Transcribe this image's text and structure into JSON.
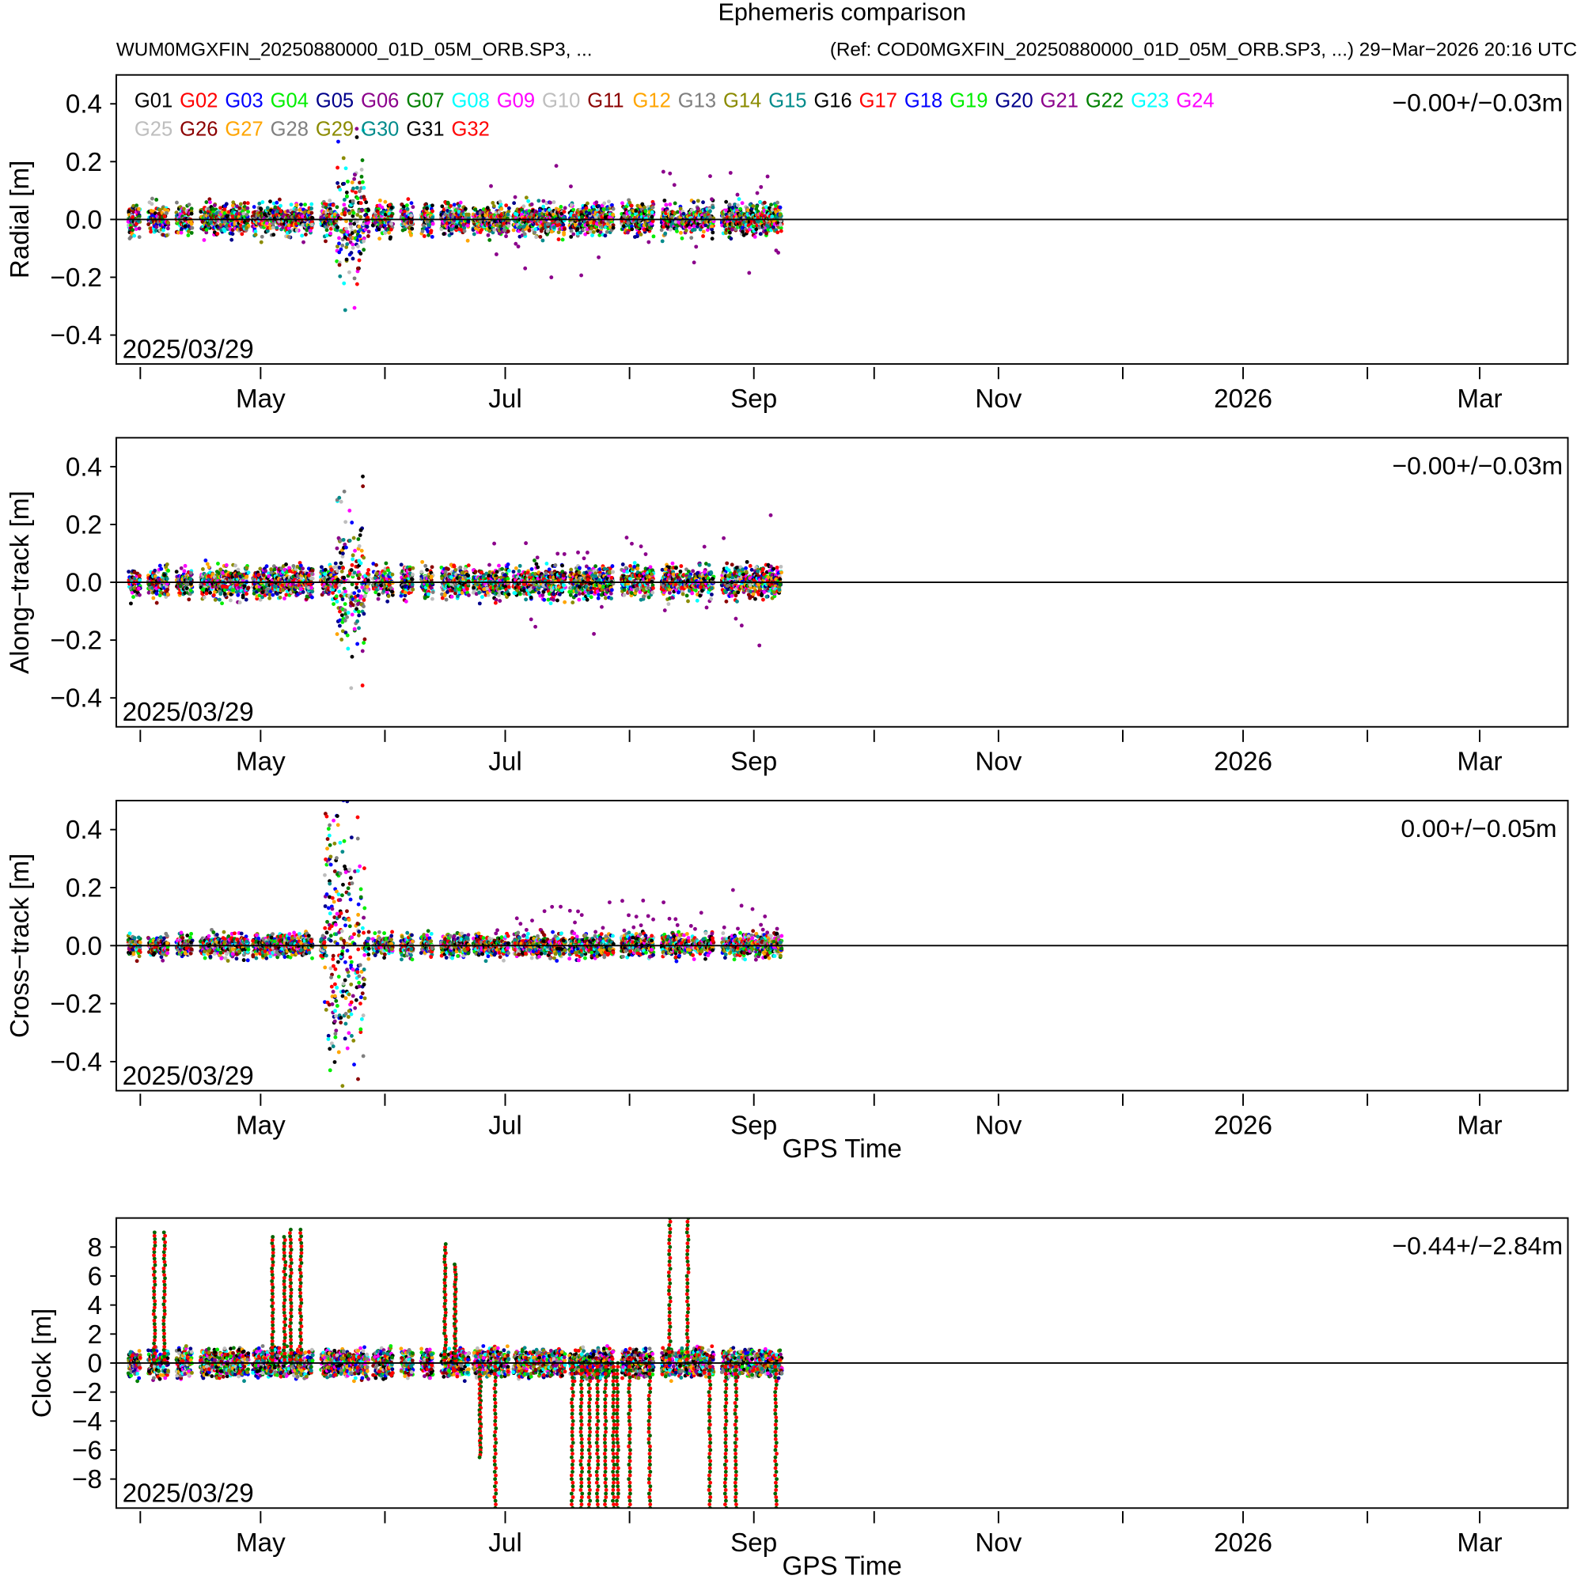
{
  "header": {
    "title": "Ephemeris comparison",
    "left_subtitle": "WUM0MGXFIN_20250880000_01D_05M_ORB.SP3, ...",
    "right_subtitle": "(Ref: COD0MGXFIN_20250880000_01D_05M_ORB.SP3, ...) 29−Mar−2026 20:16 UTC"
  },
  "chart_data": {
    "type": "scatter",
    "x_axis": {
      "label": "GPS Time",
      "start_date_label": "2025/03/29",
      "xlim_days_from_2025_03_29": [
        -3,
        359
      ],
      "major_ticks": [
        {
          "label": "May",
          "day": 33
        },
        {
          "label": "Jul",
          "day": 94
        },
        {
          "label": "Sep",
          "day": 156
        },
        {
          "label": "Nov",
          "day": 217
        },
        {
          "label": "2026",
          "day": 278
        },
        {
          "label": "Mar",
          "day": 337
        }
      ],
      "minor_ticks_days": [
        3,
        64,
        125,
        186,
        248,
        309
      ]
    },
    "legend": [
      {
        "name": "G01",
        "color": "#000000"
      },
      {
        "name": "G02",
        "color": "#ff0000"
      },
      {
        "name": "G03",
        "color": "#0000ff"
      },
      {
        "name": "G04",
        "color": "#00ee00"
      },
      {
        "name": "G05",
        "color": "#00008b"
      },
      {
        "name": "G06",
        "color": "#8b008b"
      },
      {
        "name": "G07",
        "color": "#008000"
      },
      {
        "name": "G08",
        "color": "#00ffff"
      },
      {
        "name": "G09",
        "color": "#ff00ff"
      },
      {
        "name": "G10",
        "color": "#bebebe"
      },
      {
        "name": "G11",
        "color": "#8b0000"
      },
      {
        "name": "G12",
        "color": "#ffa500"
      },
      {
        "name": "G13",
        "color": "#7f7f7f"
      },
      {
        "name": "G14",
        "color": "#8b8b00"
      },
      {
        "name": "G15",
        "color": "#008b8b"
      },
      {
        "name": "G16",
        "color": "#000000"
      },
      {
        "name": "G17",
        "color": "#ff0000"
      },
      {
        "name": "G18",
        "color": "#0000ff"
      },
      {
        "name": "G19",
        "color": "#00ee00"
      },
      {
        "name": "G20",
        "color": "#00008b"
      },
      {
        "name": "G21",
        "color": "#8b008b"
      },
      {
        "name": "G22",
        "color": "#008000"
      },
      {
        "name": "G23",
        "color": "#00ffff"
      },
      {
        "name": "G24",
        "color": "#ff00ff"
      },
      {
        "name": "G25",
        "color": "#bebebe"
      },
      {
        "name": "G26",
        "color": "#8b0000"
      },
      {
        "name": "G27",
        "color": "#ffa500"
      },
      {
        "name": "G28",
        "color": "#7f7f7f"
      },
      {
        "name": "G29",
        "color": "#8b8b00"
      },
      {
        "name": "G30",
        "color": "#008b8b"
      },
      {
        "name": "G31",
        "color": "#000000"
      },
      {
        "name": "G32",
        "color": "#ff0000"
      }
    ],
    "data_segments_days": [
      [
        0,
        3
      ],
      [
        5,
        10
      ],
      [
        12,
        16
      ],
      [
        18,
        30
      ],
      [
        31,
        46
      ],
      [
        48,
        60
      ],
      [
        61,
        66
      ],
      [
        68,
        71
      ],
      [
        73,
        76
      ],
      [
        78,
        85
      ],
      [
        86,
        95
      ],
      [
        96,
        109
      ],
      [
        110,
        121
      ],
      [
        123,
        131
      ],
      [
        133,
        146
      ],
      [
        148,
        163
      ]
    ],
    "panels": [
      {
        "ylabel": "Radial [m]",
        "ylim": [
          -0.5,
          0.5
        ],
        "yticks": [
          -0.4,
          -0.2,
          0.0,
          0.2,
          0.4
        ],
        "ytick_labels": [
          "−0.4",
          "−0.2",
          "0.0",
          "0.2",
          "0.4"
        ],
        "stat": "−0.00+/−0.03m",
        "base_spread": 0.025,
        "event_window": [
          52,
          59
        ],
        "event_spread": 0.12,
        "wide_sat": "G21",
        "wide_from_day": 90,
        "wide_spread": 0.08
      },
      {
        "ylabel": "Along−track [m]",
        "ylim": [
          -0.5,
          0.5
        ],
        "yticks": [
          -0.4,
          -0.2,
          0.0,
          0.2,
          0.4
        ],
        "ytick_labels": [
          "−0.4",
          "−0.2",
          "0.0",
          "0.2",
          "0.4"
        ],
        "stat": "−0.00+/−0.03m",
        "base_spread": 0.025,
        "event_window": [
          52,
          59
        ],
        "event_spread": 0.14,
        "wide_sat": "G21",
        "wide_from_day": 90,
        "wide_spread": 0.1
      },
      {
        "ylabel": "Cross−track [m]",
        "ylim": [
          -0.5,
          0.5
        ],
        "yticks": [
          -0.4,
          -0.2,
          0.0,
          0.2,
          0.4
        ],
        "ytick_labels": [
          "−0.4",
          "−0.2",
          "0.0",
          "0.2",
          "0.4"
        ],
        "stat": "0.00+/−0.05m",
        "base_spread": 0.018,
        "event_window": [
          49,
          59
        ],
        "event_spread": 0.25,
        "wide_sat": "G21",
        "wide_from_day": 90,
        "wide_spread": 0.05,
        "wide_offset": 0.06
      },
      {
        "ylabel": "Clock [m]",
        "ylim": [
          -10,
          10
        ],
        "yticks": [
          -8,
          -6,
          -4,
          -2,
          0,
          2,
          4,
          6,
          8
        ],
        "ytick_labels": [
          "−8",
          "−6",
          "−4",
          "−2",
          "0",
          "2",
          "4",
          "6",
          "8"
        ],
        "stat": "−0.44+/−2.84m",
        "base_spread": 0.4,
        "clock_jumps": [
          [
            6.5,
            9
          ],
          [
            9,
            9
          ],
          [
            36,
            8.7
          ],
          [
            39,
            8.7
          ],
          [
            40.5,
            9.2
          ],
          [
            43,
            9.2
          ],
          [
            79,
            8.2
          ],
          [
            81.5,
            6.8
          ],
          [
            87.75,
            -6.5
          ],
          [
            91.5,
            -10
          ],
          [
            110.75,
            -10
          ],
          [
            113,
            -10
          ],
          [
            115,
            -10
          ],
          [
            117,
            -10
          ],
          [
            119,
            -10
          ],
          [
            121,
            -10
          ],
          [
            122,
            -10
          ],
          [
            125,
            -10
          ],
          [
            130,
            -10
          ],
          [
            135,
            10
          ],
          [
            139.5,
            10
          ],
          [
            145,
            -10
          ],
          [
            149,
            -10
          ],
          [
            151.5,
            -10
          ],
          [
            161.5,
            -10
          ]
        ]
      }
    ]
  }
}
